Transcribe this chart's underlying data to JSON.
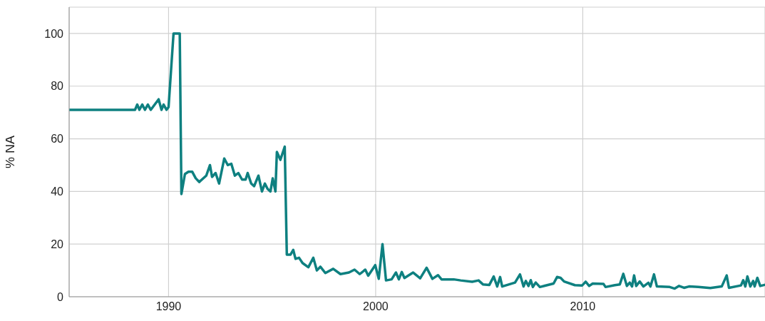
{
  "chart_data": {
    "type": "line",
    "ylabel": "% NA",
    "x": [
      1985.2,
      1988.38,
      1988.49,
      1988.59,
      1988.73,
      1988.86,
      1989.0,
      1989.14,
      1989.52,
      1989.66,
      1989.76,
      1989.9,
      1990.0,
      1990.24,
      1990.54,
      1990.62,
      1990.79,
      1990.96,
      1991.14,
      1991.31,
      1991.48,
      1991.82,
      1992.0,
      1992.1,
      1992.27,
      1992.44,
      1992.69,
      1992.86,
      1993.03,
      1993.2,
      1993.37,
      1993.55,
      1993.72,
      1993.82,
      1993.99,
      1994.13,
      1994.34,
      1994.51,
      1994.65,
      1994.78,
      1994.92,
      1995.03,
      1995.16,
      1995.23,
      1995.4,
      1995.61,
      1995.71,
      1995.89,
      1996.02,
      1996.13,
      1996.3,
      1996.47,
      1996.75,
      1996.99,
      1997.16,
      1997.33,
      1997.57,
      1997.95,
      1998.3,
      1998.71,
      1998.98,
      1999.23,
      1999.5,
      1999.64,
      1999.98,
      2000.15,
      2000.33,
      2000.5,
      2000.77,
      2000.98,
      2001.12,
      2001.26,
      2001.39,
      2001.81,
      2002.15,
      2002.46,
      2002.74,
      2003.01,
      2003.18,
      2003.77,
      2004.11,
      2004.66,
      2004.97,
      2005.18,
      2005.49,
      2005.7,
      2005.87,
      2006.01,
      2006.11,
      2006.73,
      2006.97,
      2007.14,
      2007.25,
      2007.38,
      2007.49,
      2007.59,
      2007.73,
      2007.93,
      2008.59,
      2008.76,
      2008.93,
      2009.1,
      2009.62,
      2009.97,
      2010.14,
      2010.31,
      2010.48,
      2011.0,
      2011.1,
      2011.55,
      2011.79,
      2011.96,
      2012.13,
      2012.27,
      2012.38,
      2012.48,
      2012.58,
      2012.75,
      2012.93,
      2013.17,
      2013.27,
      2013.44,
      2013.58,
      2014.2,
      2014.44,
      2014.65,
      2014.89,
      2015.13,
      2015.58,
      2016.16,
      2016.71,
      2016.95,
      2017.06,
      2017.64,
      2017.75,
      2017.85,
      2017.95,
      2018.09,
      2018.23,
      2018.3,
      2018.43,
      2018.57,
      2018.78
    ],
    "series": [
      {
        "color": "#0e8080",
        "values": [
          71,
          71,
          73,
          71,
          73,
          71,
          73,
          71,
          75,
          71,
          73,
          71,
          72,
          100,
          100,
          39,
          46.6,
          47.5,
          47.5,
          45,
          43.6,
          46,
          50,
          45.5,
          47,
          43,
          52.5,
          50,
          50.5,
          46,
          47,
          44.5,
          44.5,
          47,
          43,
          42,
          46,
          40,
          43,
          41,
          40,
          45,
          40,
          55,
          52,
          57,
          16,
          16,
          17.8,
          14.4,
          14.8,
          12.8,
          11.2,
          14.8,
          10,
          11.4,
          9,
          10.6,
          8.6,
          9.2,
          10.3,
          8.6,
          10.3,
          8,
          12,
          6.8,
          20,
          6.2,
          6.6,
          9.2,
          6.6,
          9.4,
          7.1,
          9.2,
          7,
          11,
          6.8,
          8.2,
          6.6,
          6.6,
          6.2,
          5.7,
          6.2,
          4.7,
          4.5,
          7.7,
          3.9,
          7.5,
          3.9,
          5.4,
          8.5,
          3.9,
          6,
          4.1,
          6.3,
          3.7,
          5.4,
          3.7,
          5,
          7.5,
          7.2,
          5.8,
          4.4,
          4.3,
          5.7,
          4.1,
          5,
          4.9,
          3.7,
          4.4,
          4.7,
          8.7,
          4.1,
          5.4,
          3.9,
          8.1,
          4.1,
          5.8,
          3.9,
          5.3,
          3.9,
          8.5,
          3.9,
          3.7,
          3.1,
          4.1,
          3.4,
          3.9,
          3.7,
          3.3,
          3.9,
          8.1,
          3.4,
          4.3,
          6.3,
          3.9,
          7.7,
          3.9,
          6,
          3.9,
          7.2,
          4.1,
          4.5
        ]
      }
    ],
    "xlim": [
      1985.2,
      2018.8
    ],
    "xticks": [
      1990,
      2000,
      2010
    ],
    "ylim": [
      0,
      110
    ],
    "yticks": [
      0,
      20,
      40,
      60,
      80,
      100
    ],
    "grid": true,
    "marker": "none",
    "line_style": "solid"
  }
}
